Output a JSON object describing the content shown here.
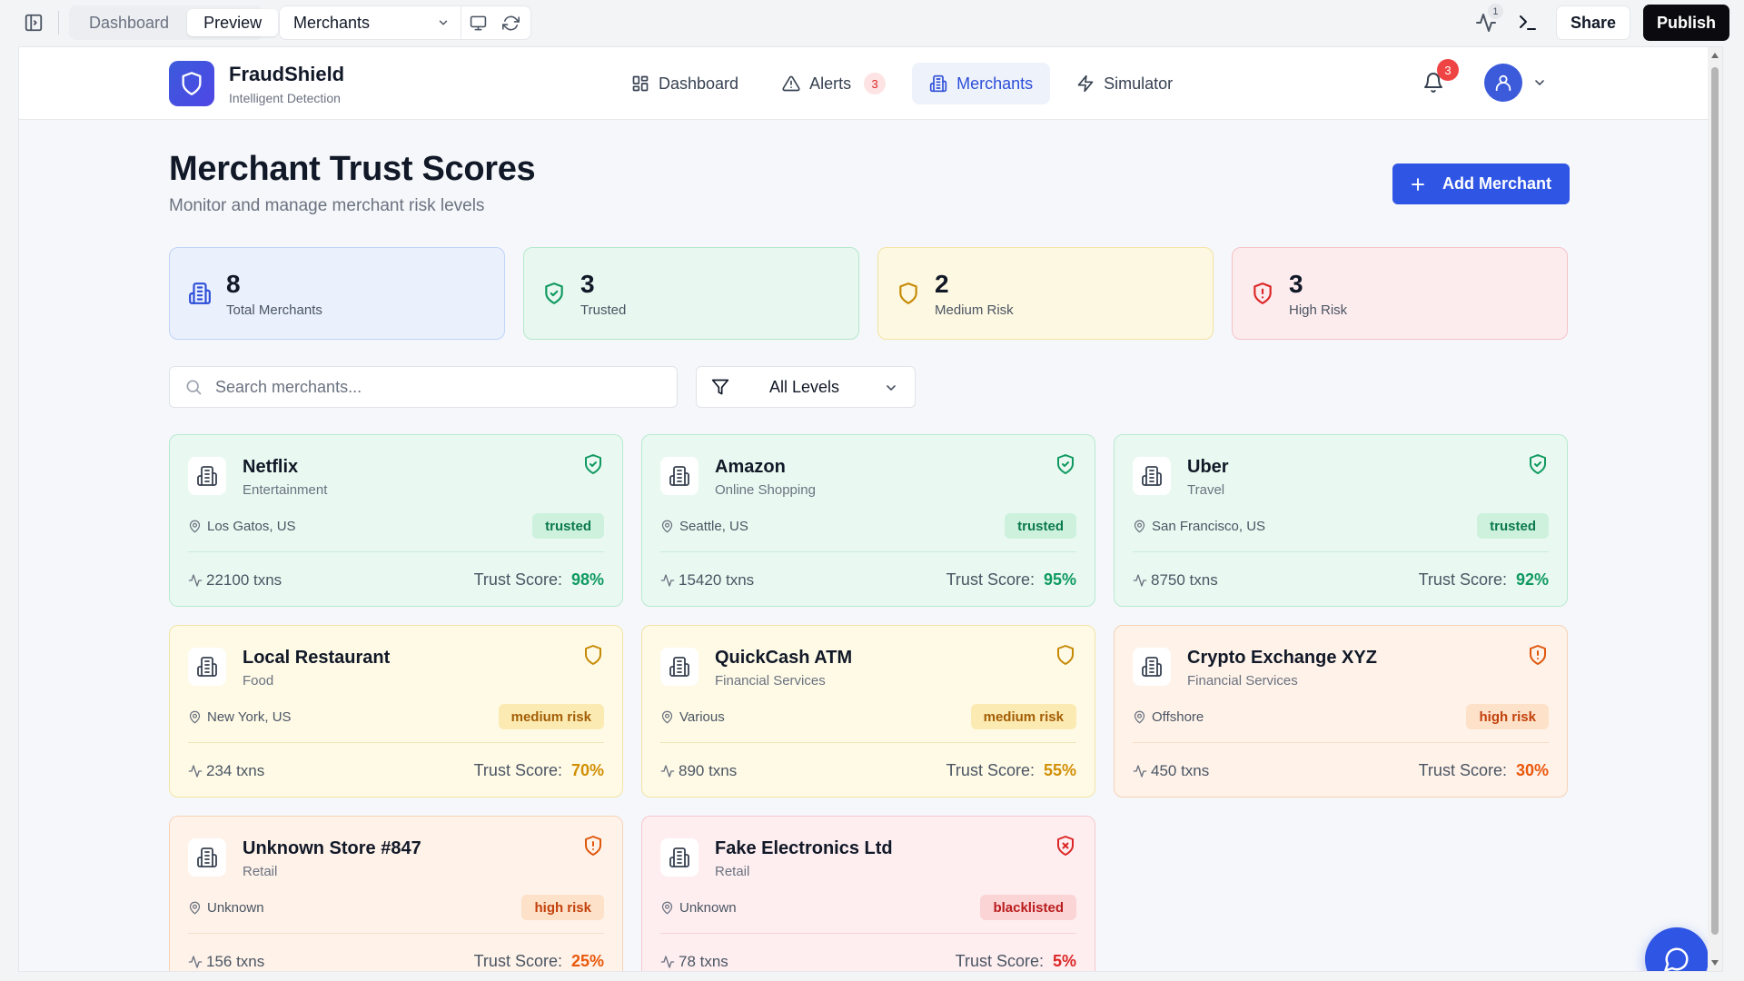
{
  "editor": {
    "tabs": [
      {
        "label": "Dashboard",
        "active": false
      },
      {
        "label": "Preview",
        "active": true
      }
    ],
    "route": "Merchants",
    "activity_count": "1",
    "share_label": "Share",
    "publish_label": "Publish"
  },
  "app": {
    "brand_name": "FraudShield",
    "brand_sub": "Intelligent Detection",
    "nav": [
      {
        "label": "Dashboard",
        "icon": "layout-grid-icon"
      },
      {
        "label": "Alerts",
        "icon": "alert-triangle-icon",
        "badge": "3"
      },
      {
        "label": "Merchants",
        "icon": "building-icon",
        "active": true
      },
      {
        "label": "Simulator",
        "icon": "zap-icon"
      }
    ],
    "notification_count": "3"
  },
  "page": {
    "title": "Merchant Trust Scores",
    "subtitle": "Monitor and manage merchant risk levels",
    "add_label": "Add Merchant"
  },
  "stats": [
    {
      "value": "8",
      "label": "Total Merchants",
      "tone": "blue",
      "icon": "building-icon"
    },
    {
      "value": "3",
      "label": "Trusted",
      "tone": "green",
      "icon": "shield-check-icon"
    },
    {
      "value": "2",
      "label": "Medium Risk",
      "tone": "yellow",
      "icon": "shield-icon"
    },
    {
      "value": "3",
      "label": "High Risk",
      "tone": "red",
      "icon": "shield-alert-icon"
    }
  ],
  "filters": {
    "search_placeholder": "Search merchants...",
    "level": "All Levels"
  },
  "merchants": [
    {
      "name": "Netflix",
      "category": "Entertainment",
      "location": "Los Gatos, US",
      "badge": "trusted",
      "txns": "22100 txns",
      "score_label": "Trust Score:",
      "score": "98%",
      "level": "trusted"
    },
    {
      "name": "Amazon",
      "category": "Online Shopping",
      "location": "Seattle, US",
      "badge": "trusted",
      "txns": "15420 txns",
      "score_label": "Trust Score:",
      "score": "95%",
      "level": "trusted"
    },
    {
      "name": "Uber",
      "category": "Travel",
      "location": "San Francisco, US",
      "badge": "trusted",
      "txns": "8750 txns",
      "score_label": "Trust Score:",
      "score": "92%",
      "level": "trusted"
    },
    {
      "name": "Local Restaurant",
      "category": "Food",
      "location": "New York, US",
      "badge": "medium risk",
      "txns": "234 txns",
      "score_label": "Trust Score:",
      "score": "70%",
      "level": "medium"
    },
    {
      "name": "QuickCash ATM",
      "category": "Financial Services",
      "location": "Various",
      "badge": "medium risk",
      "txns": "890 txns",
      "score_label": "Trust Score:",
      "score": "55%",
      "level": "medium"
    },
    {
      "name": "Crypto Exchange XYZ",
      "category": "Financial Services",
      "location": "Offshore",
      "badge": "high risk",
      "txns": "450 txns",
      "score_label": "Trust Score:",
      "score": "30%",
      "level": "high"
    },
    {
      "name": "Unknown Store #847",
      "category": "Retail",
      "location": "Unknown",
      "badge": "high risk",
      "txns": "156 txns",
      "score_label": "Trust Score:",
      "score": "25%",
      "level": "high"
    },
    {
      "name": "Fake Electronics Ltd",
      "category": "Retail",
      "location": "Unknown",
      "badge": "blacklisted",
      "txns": "78 txns",
      "score_label": "Trust Score:",
      "score": "5%",
      "level": "black"
    }
  ]
}
